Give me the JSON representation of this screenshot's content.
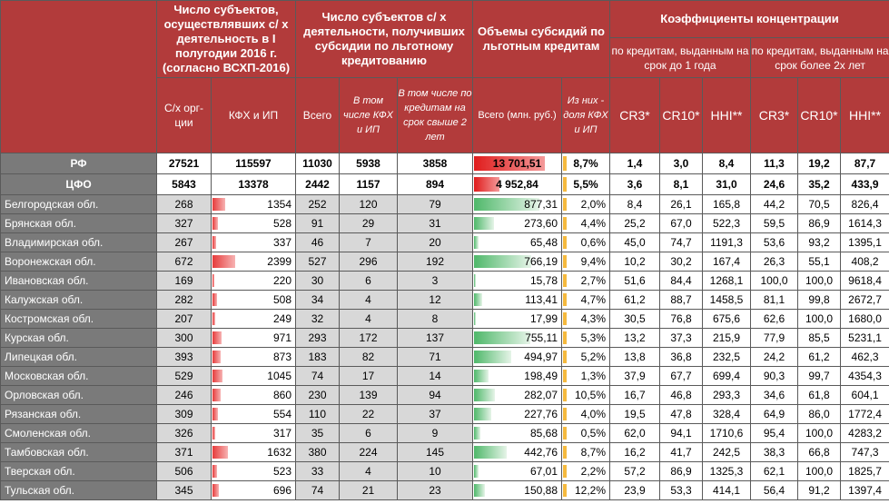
{
  "headers": {
    "g1": "Число субъектов, осуществлявших с/ х деятельность в I полугодии 2016 г. (согласно ВСХП-2016)",
    "g2": "Число субъектов с/ х деятельности, получивших субсидии по льготному кредитованию",
    "g3": "Объемы субсидий по льготным кредитам",
    "g4": "Коэффициенты концентрации",
    "g4a": "по кредитам, выданным на срок до 1 года",
    "g4b": "по кредитам, выданным на срок более 2х лет",
    "cols": [
      "С/х орг-ции",
      "КФХ и ИП",
      "Всего",
      "В том числе КФХ и ИП",
      "В том числе по кредитам на срок свыше 2 лет",
      "Всего (млн. руб.)",
      "Из них - доля КФХ и ИП",
      "CR3*",
      "CR10*",
      "HHI**",
      "CR3*",
      "CR10*",
      "HHI**"
    ]
  },
  "colors": {
    "header": "#b23b3b",
    "name_cell": "#7a7a7a",
    "body": "#d8d8d8",
    "bar_red": "#e63b3b",
    "bar_green": "#4fb86a",
    "bar_yellow": "#f5b93e"
  },
  "totals": [
    {
      "name": "РФ",
      "v": [
        "27521",
        "115597",
        "11030",
        "5938",
        "3858",
        "13 701,51",
        "8,7%",
        "1,4",
        "3,0",
        "8,4",
        "11,3",
        "19,2",
        "87,7"
      ],
      "vol": 13701.51,
      "share": 8.7
    },
    {
      "name": "ЦФО",
      "v": [
        "5843",
        "13378",
        "2442",
        "1157",
        "894",
        "4 952,84",
        "5,5%",
        "3,6",
        "8,1",
        "31,0",
        "24,6",
        "35,2",
        "433,9"
      ],
      "vol": 4952.84,
      "share": 5.5
    }
  ],
  "rows": [
    {
      "name": "Белгородская обл.",
      "v": [
        "268",
        "1354",
        "252",
        "120",
        "79",
        "877,31",
        "2,0%",
        "8,4",
        "26,1",
        "165,8",
        "44,2",
        "70,5",
        "826,4"
      ],
      "kfh": 1354,
      "vol": 877.31,
      "share": 2.0,
      "h1": [
        8.4,
        26.1,
        165.8
      ],
      "h2": [
        44.2,
        70.5,
        826.4
      ]
    },
    {
      "name": "Брянская обл.",
      "v": [
        "327",
        "528",
        "91",
        "29",
        "31",
        "273,60",
        "4,4%",
        "25,2",
        "67,0",
        "522,3",
        "59,5",
        "86,9",
        "1614,3"
      ],
      "kfh": 528,
      "vol": 273.6,
      "share": 4.4,
      "h1": [
        25.2,
        67.0,
        522.3
      ],
      "h2": [
        59.5,
        86.9,
        1614.3
      ]
    },
    {
      "name": "Владимирская обл.",
      "v": [
        "267",
        "337",
        "46",
        "7",
        "20",
        "65,48",
        "0,6%",
        "45,0",
        "74,7",
        "1191,3",
        "53,6",
        "93,2",
        "1395,1"
      ],
      "kfh": 337,
      "vol": 65.48,
      "share": 0.6,
      "h1": [
        45.0,
        74.7,
        1191.3
      ],
      "h2": [
        53.6,
        93.2,
        1395.1
      ]
    },
    {
      "name": "Воронежская обл.",
      "v": [
        "672",
        "2399",
        "527",
        "296",
        "192",
        "766,19",
        "9,4%",
        "10,2",
        "30,2",
        "167,4",
        "26,3",
        "55,1",
        "408,2"
      ],
      "kfh": 2399,
      "vol": 766.19,
      "share": 9.4,
      "h1": [
        10.2,
        30.2,
        167.4
      ],
      "h2": [
        26.3,
        55.1,
        408.2
      ]
    },
    {
      "name": "Ивановская обл.",
      "v": [
        "169",
        "220",
        "30",
        "6",
        "3",
        "15,78",
        "2,7%",
        "51,6",
        "84,4",
        "1268,1",
        "100,0",
        "100,0",
        "9618,4"
      ],
      "kfh": 220,
      "vol": 15.78,
      "share": 2.7,
      "h1": [
        51.6,
        84.4,
        1268.1
      ],
      "h2": [
        100.0,
        100.0,
        9618.4
      ]
    },
    {
      "name": "Калужская обл.",
      "v": [
        "282",
        "508",
        "34",
        "4",
        "12",
        "113,41",
        "4,7%",
        "61,2",
        "88,7",
        "1458,5",
        "81,1",
        "99,8",
        "2672,7"
      ],
      "kfh": 508,
      "vol": 113.41,
      "share": 4.7,
      "h1": [
        61.2,
        88.7,
        1458.5
      ],
      "h2": [
        81.1,
        99.8,
        2672.7
      ]
    },
    {
      "name": "Костромская обл.",
      "v": [
        "207",
        "249",
        "32",
        "4",
        "8",
        "17,99",
        "4,3%",
        "30,5",
        "76,8",
        "675,6",
        "62,6",
        "100,0",
        "1680,0"
      ],
      "kfh": 249,
      "vol": 17.99,
      "share": 4.3,
      "h1": [
        30.5,
        76.8,
        675.6
      ],
      "h2": [
        62.6,
        100.0,
        1680.0
      ]
    },
    {
      "name": "Курская обл.",
      "v": [
        "300",
        "971",
        "293",
        "172",
        "137",
        "755,11",
        "5,3%",
        "13,2",
        "37,3",
        "215,9",
        "77,9",
        "85,5",
        "5231,1"
      ],
      "kfh": 971,
      "vol": 755.11,
      "share": 5.3,
      "h1": [
        13.2,
        37.3,
        215.9
      ],
      "h2": [
        77.9,
        85.5,
        5231.1
      ]
    },
    {
      "name": "Липецкая обл.",
      "v": [
        "393",
        "873",
        "183",
        "82",
        "71",
        "494,97",
        "5,2%",
        "13,8",
        "36,8",
        "232,5",
        "24,2",
        "61,2",
        "462,3"
      ],
      "kfh": 873,
      "vol": 494.97,
      "share": 5.2,
      "h1": [
        13.8,
        36.8,
        232.5
      ],
      "h2": [
        24.2,
        61.2,
        462.3
      ]
    },
    {
      "name": "Московская  обл.",
      "v": [
        "529",
        "1045",
        "74",
        "17",
        "14",
        "198,49",
        "1,3%",
        "37,9",
        "67,7",
        "699,4",
        "90,3",
        "99,7",
        "4354,3"
      ],
      "kfh": 1045,
      "vol": 198.49,
      "share": 1.3,
      "h1": [
        37.9,
        67.7,
        699.4
      ],
      "h2": [
        90.3,
        99.7,
        4354.3
      ]
    },
    {
      "name": "Орловская обл.",
      "v": [
        "246",
        "860",
        "230",
        "139",
        "94",
        "282,07",
        "10,5%",
        "16,7",
        "46,8",
        "293,3",
        "34,6",
        "61,8",
        "604,1"
      ],
      "kfh": 860,
      "vol": 282.07,
      "share": 10.5,
      "h1": [
        16.7,
        46.8,
        293.3
      ],
      "h2": [
        34.6,
        61.8,
        604.1
      ]
    },
    {
      "name": "Рязанская обл.",
      "v": [
        "309",
        "554",
        "110",
        "22",
        "37",
        "227,76",
        "4,0%",
        "19,5",
        "47,8",
        "328,4",
        "64,9",
        "86,0",
        "1772,4"
      ],
      "kfh": 554,
      "vol": 227.76,
      "share": 4.0,
      "h1": [
        19.5,
        47.8,
        328.4
      ],
      "h2": [
        64.9,
        86.0,
        1772.4
      ]
    },
    {
      "name": "Смоленская обл.",
      "v": [
        "326",
        "317",
        "35",
        "6",
        "9",
        "85,68",
        "0,5%",
        "62,0",
        "94,1",
        "1710,6",
        "95,4",
        "100,0",
        "4283,2"
      ],
      "kfh": 317,
      "vol": 85.68,
      "share": 0.5,
      "h1": [
        62.0,
        94.1,
        1710.6
      ],
      "h2": [
        95.4,
        100.0,
        4283.2
      ]
    },
    {
      "name": "Тамбовская обл.",
      "v": [
        "371",
        "1632",
        "380",
        "224",
        "145",
        "442,76",
        "8,7%",
        "16,2",
        "41,7",
        "242,5",
        "38,3",
        "66,8",
        "747,3"
      ],
      "kfh": 1632,
      "vol": 442.76,
      "share": 8.7,
      "h1": [
        16.2,
        41.7,
        242.5
      ],
      "h2": [
        38.3,
        66.8,
        747.3
      ]
    },
    {
      "name": "Тверская обл.",
      "v": [
        "506",
        "523",
        "33",
        "4",
        "10",
        "67,01",
        "2,2%",
        "57,2",
        "86,9",
        "1325,3",
        "62,1",
        "100,0",
        "1825,7"
      ],
      "kfh": 523,
      "vol": 67.01,
      "share": 2.2,
      "h1": [
        57.2,
        86.9,
        1325.3
      ],
      "h2": [
        62.1,
        100.0,
        1825.7
      ]
    },
    {
      "name": "Тульская обл.",
      "v": [
        "345",
        "696",
        "74",
        "21",
        "23",
        "150,88",
        "12,2%",
        "23,9",
        "53,3",
        "414,1",
        "56,4",
        "91,2",
        "1397,4"
      ],
      "kfh": 696,
      "vol": 150.88,
      "share": 12.2,
      "h1": [
        23.9,
        53.3,
        414.1
      ],
      "h2": [
        56.4,
        91.2,
        1397.4
      ]
    }
  ]
}
